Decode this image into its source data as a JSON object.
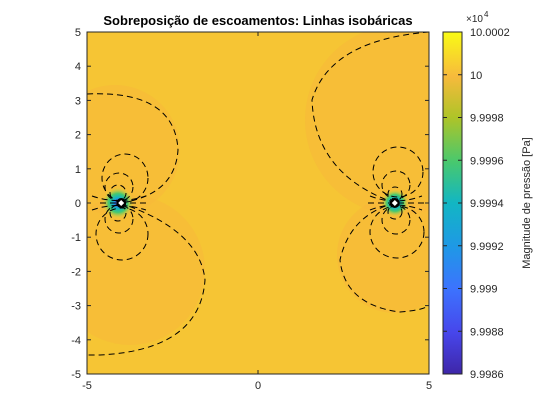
{
  "chart_data": {
    "type": "contour",
    "title": "Sobreposição de escoamentos: Linhas isobáricas",
    "xlim": [
      -5,
      5
    ],
    "ylim": [
      -5,
      5
    ],
    "x_ticks": [
      "-5",
      "0",
      "5"
    ],
    "y_ticks": [
      "5",
      "4",
      "3",
      "2",
      "1",
      "0",
      "-1",
      "-2",
      "-3",
      "-4",
      "-5"
    ],
    "colorbar": {
      "label": "Magnitude de pressão [Pa]",
      "exponent_label": "×10",
      "exponent": "4",
      "range": [
        9.9986,
        10.0002
      ],
      "tick_labels": [
        "10.0002",
        "10",
        "9.9998",
        "9.9996",
        "9.9994",
        "9.9992",
        "9.999",
        "9.9988",
        "9.9986"
      ],
      "colormap": "parula"
    },
    "stagnation_points": [
      {
        "x": -4,
        "y": 0
      },
      {
        "x": 4,
        "y": 0
      }
    ],
    "background_pressure": 10.0,
    "colors": {
      "field_high": "#f4d530",
      "field_mid": "#f9b33b",
      "isobar_line": "#000000"
    }
  }
}
